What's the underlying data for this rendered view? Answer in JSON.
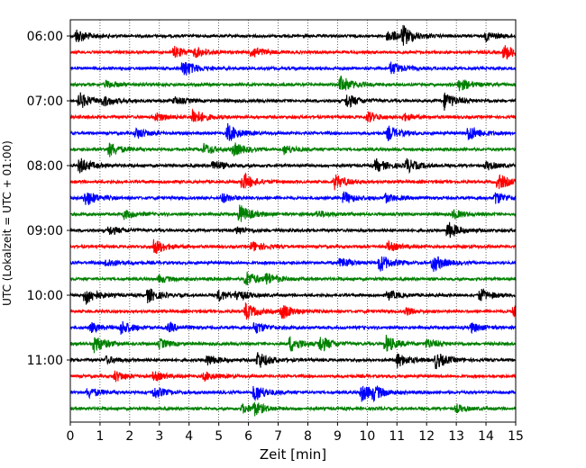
{
  "chart_data": {
    "type": "line",
    "title": "",
    "xlabel": "Zeit  [min]",
    "ylabel": "UTC (Lokalzeit = UTC + 01:00)",
    "xlim": [
      0,
      15
    ],
    "x_ticks": [
      "0",
      "1",
      "2",
      "3",
      "4",
      "5",
      "6",
      "7",
      "8",
      "9",
      "10",
      "11",
      "12",
      "13",
      "14",
      "15"
    ],
    "y_tick_labels": [
      "06:00",
      "07:00",
      "08:00",
      "09:00",
      "10:00",
      "11:00"
    ],
    "grid": "vertical dotted",
    "colors": [
      "#000000",
      "#ff0000",
      "#0000ff",
      "#008000"
    ],
    "row_interval_min": 15,
    "traces": [
      {
        "start": "06:00",
        "color": "#000000",
        "events": [
          [
            0.2,
            0.8
          ],
          [
            11.2,
            1.0
          ],
          [
            10.7,
            0.7
          ],
          [
            14.0,
            0.5
          ]
        ]
      },
      {
        "start": "06:15",
        "color": "#ff0000",
        "events": [
          [
            3.5,
            0.6
          ],
          [
            4.2,
            0.5
          ],
          [
            6.1,
            0.7
          ],
          [
            14.6,
            0.9
          ]
        ]
      },
      {
        "start": "06:30",
        "color": "#0000ff",
        "events": [
          [
            3.8,
            1.0
          ],
          [
            10.8,
            0.7
          ]
        ]
      },
      {
        "start": "06:45",
        "color": "#008000",
        "events": [
          [
            1.2,
            0.4
          ],
          [
            9.1,
            1.0
          ],
          [
            13.1,
            0.7
          ]
        ]
      },
      {
        "start": "07:00",
        "color": "#000000",
        "events": [
          [
            0.3,
            0.9
          ],
          [
            1.1,
            0.5
          ],
          [
            3.5,
            0.4
          ],
          [
            9.3,
            0.8
          ],
          [
            12.6,
            1.0
          ]
        ]
      },
      {
        "start": "07:15",
        "color": "#ff0000",
        "events": [
          [
            2.9,
            0.5
          ],
          [
            4.1,
            1.0
          ],
          [
            10.0,
            0.6
          ],
          [
            11.2,
            0.4
          ]
        ]
      },
      {
        "start": "07:30",
        "color": "#0000ff",
        "events": [
          [
            2.2,
            0.6
          ],
          [
            5.3,
            1.0
          ],
          [
            10.7,
            0.8
          ],
          [
            13.4,
            0.9
          ]
        ]
      },
      {
        "start": "07:45",
        "color": "#008000",
        "events": [
          [
            1.3,
            0.8
          ],
          [
            4.5,
            0.6
          ],
          [
            5.5,
            0.7
          ],
          [
            7.2,
            0.5
          ]
        ]
      },
      {
        "start": "08:00",
        "color": "#000000",
        "events": [
          [
            0.3,
            0.9
          ],
          [
            4.8,
            0.6
          ],
          [
            10.3,
            0.7
          ],
          [
            11.3,
            0.8
          ],
          [
            14.0,
            0.5
          ]
        ]
      },
      {
        "start": "08:15",
        "color": "#ff0000",
        "events": [
          [
            5.8,
            1.0
          ],
          [
            8.9,
            0.8
          ],
          [
            14.4,
            0.9
          ]
        ]
      },
      {
        "start": "08:30",
        "color": "#0000ff",
        "events": [
          [
            0.5,
            0.9
          ],
          [
            5.1,
            0.5
          ],
          [
            9.2,
            0.7
          ],
          [
            10.6,
            0.5
          ],
          [
            14.3,
            0.7
          ]
        ]
      },
      {
        "start": "08:45",
        "color": "#008000",
        "events": [
          [
            1.8,
            0.5
          ],
          [
            5.7,
            1.0
          ],
          [
            8.3,
            0.4
          ],
          [
            12.9,
            0.5
          ]
        ]
      },
      {
        "start": "09:00",
        "color": "#000000",
        "events": [
          [
            1.3,
            0.5
          ],
          [
            5.6,
            0.4
          ],
          [
            12.7,
            1.0
          ]
        ]
      },
      {
        "start": "09:15",
        "color": "#ff0000",
        "events": [
          [
            2.8,
            0.9
          ],
          [
            6.1,
            0.6
          ],
          [
            10.7,
            0.5
          ]
        ]
      },
      {
        "start": "09:30",
        "color": "#0000ff",
        "events": [
          [
            1.2,
            0.5
          ],
          [
            9.1,
            0.6
          ],
          [
            10.4,
            1.0
          ],
          [
            12.2,
            1.0
          ]
        ]
      },
      {
        "start": "09:45",
        "color": "#008000",
        "events": [
          [
            3.0,
            0.4
          ],
          [
            5.9,
            0.9
          ],
          [
            6.6,
            0.6
          ]
        ]
      },
      {
        "start": "10:00",
        "color": "#000000",
        "events": [
          [
            0.5,
            1.0
          ],
          [
            2.6,
            0.8
          ],
          [
            5.0,
            0.6
          ],
          [
            5.6,
            0.5
          ],
          [
            10.7,
            0.5
          ],
          [
            13.8,
            0.7
          ]
        ]
      },
      {
        "start": "10:15",
        "color": "#ff0000",
        "events": [
          [
            5.9,
            0.9
          ],
          [
            7.1,
            0.9
          ],
          [
            11.3,
            0.4
          ],
          [
            14.9,
            0.7
          ]
        ]
      },
      {
        "start": "10:30",
        "color": "#0000ff",
        "events": [
          [
            0.7,
            0.5
          ],
          [
            1.7,
            0.8
          ],
          [
            3.3,
            0.5
          ],
          [
            6.2,
            0.7
          ],
          [
            13.5,
            0.5
          ]
        ]
      },
      {
        "start": "10:45",
        "color": "#008000",
        "events": [
          [
            0.8,
            1.0
          ],
          [
            3.0,
            0.5
          ],
          [
            7.4,
            0.9
          ],
          [
            8.4,
            0.9
          ],
          [
            10.6,
            1.0
          ],
          [
            12.0,
            0.5
          ]
        ]
      },
      {
        "start": "11:00",
        "color": "#000000",
        "events": [
          [
            1.2,
            0.4
          ],
          [
            4.6,
            0.6
          ],
          [
            6.3,
            1.0
          ],
          [
            11.0,
            0.8
          ],
          [
            12.3,
            0.9
          ]
        ]
      },
      {
        "start": "11:15",
        "color": "#ff0000",
        "events": [
          [
            1.5,
            0.6
          ],
          [
            2.8,
            0.5
          ],
          [
            4.5,
            0.5
          ]
        ]
      },
      {
        "start": "11:30",
        "color": "#0000ff",
        "events": [
          [
            0.6,
            0.6
          ],
          [
            2.8,
            0.7
          ],
          [
            6.2,
            1.0
          ],
          [
            9.8,
            1.0
          ],
          [
            10.2,
            0.6
          ]
        ]
      },
      {
        "start": "11:45",
        "color": "#008000",
        "events": [
          [
            5.8,
            0.5
          ],
          [
            6.2,
            0.6
          ],
          [
            13.0,
            0.4
          ]
        ]
      }
    ]
  }
}
